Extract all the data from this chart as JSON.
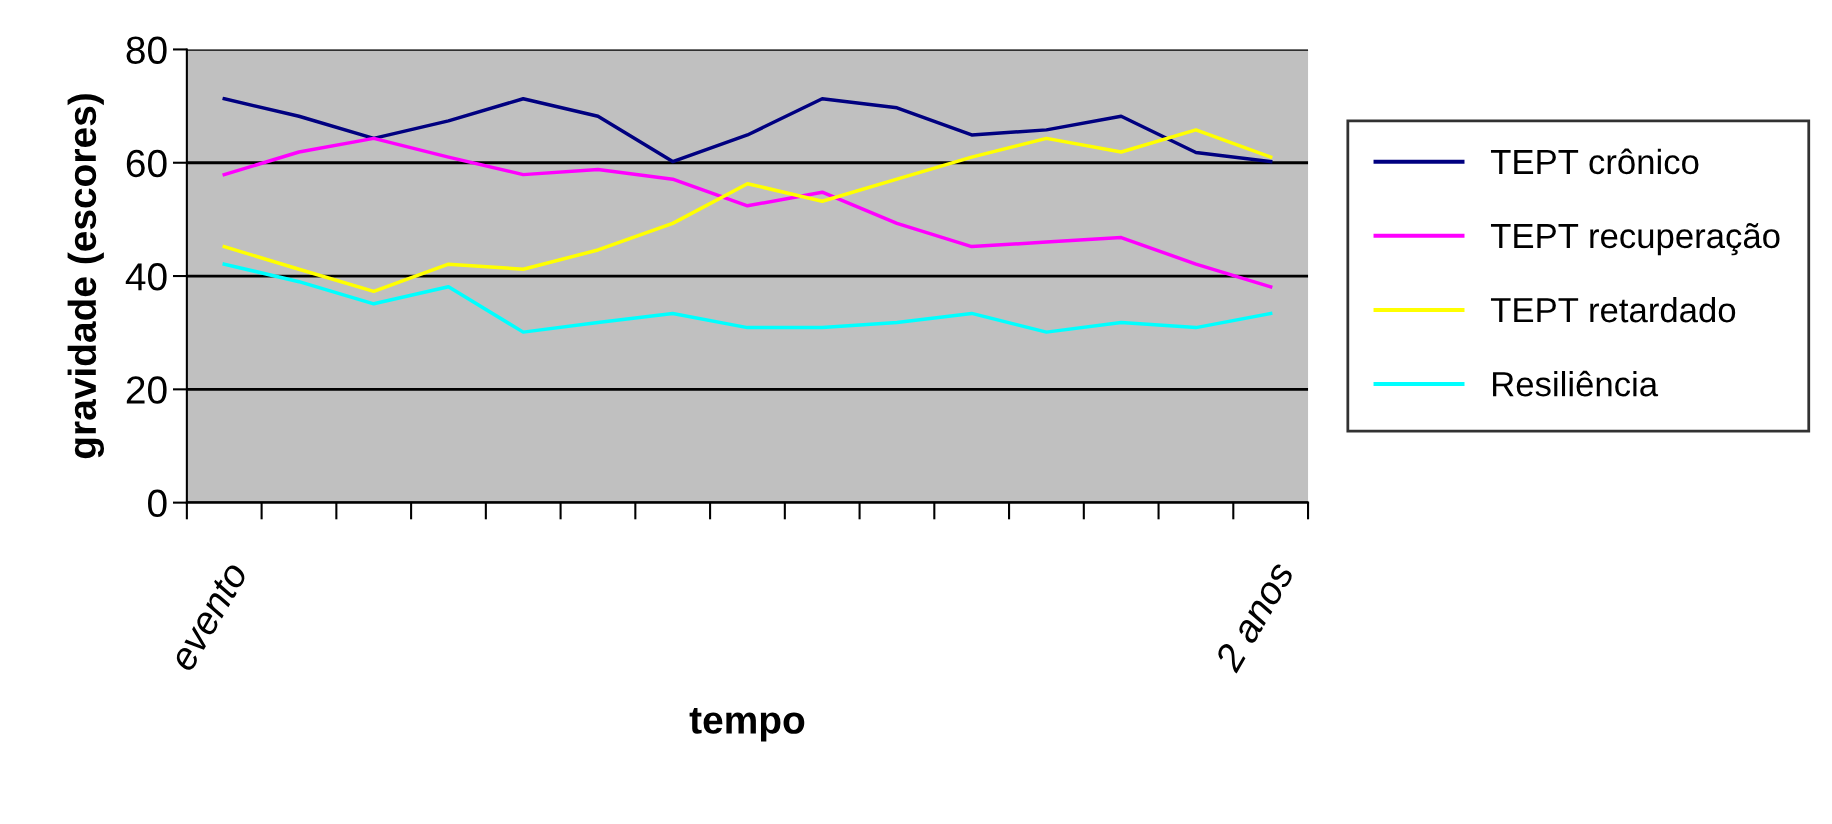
{
  "chart_data": {
    "type": "line",
    "xlabel": "tempo",
    "ylabel": "gravidade (escores)",
    "categories": [
      "evento",
      null,
      null,
      null,
      null,
      null,
      null,
      null,
      null,
      null,
      null,
      null,
      null,
      null,
      "2 anos"
    ],
    "series": [
      {
        "name": "TEPT crônico",
        "color": "#000080",
        "values": [
          71.3,
          68.2,
          64.3,
          67.4,
          71.3,
          68.2,
          60.2,
          64.9,
          71.3,
          69.7,
          64.9,
          65.8,
          68.2,
          61.8,
          60.2
        ]
      },
      {
        "name": "TEPT recuperação",
        "color": "#ff00ff",
        "values": [
          57.9,
          61.9,
          64.3,
          61.0,
          57.9,
          58.8,
          57.1,
          52.4,
          54.8,
          49.3,
          45.2,
          46.0,
          46.8,
          42.1,
          38.1
        ]
      },
      {
        "name": "TEPT retardado",
        "color": "#ffff00",
        "values": [
          45.2,
          41.2,
          37.3,
          42.1,
          41.2,
          44.6,
          49.3,
          56.3,
          53.2,
          57.1,
          61.0,
          64.3,
          61.9,
          65.8,
          61.0
        ]
      },
      {
        "name": "Resiliência",
        "color": "#00ffff",
        "values": [
          42.1,
          39.0,
          35.1,
          38.1,
          30.1,
          31.8,
          33.4,
          30.9,
          30.9,
          31.8,
          33.4,
          30.1,
          31.8,
          30.9,
          33.4
        ]
      }
    ],
    "ylim": [
      0,
      80
    ],
    "yticks": [
      0,
      20,
      40,
      60,
      80
    ],
    "grid": "y",
    "legend": "right",
    "marker": "none",
    "line_style": "solid"
  }
}
